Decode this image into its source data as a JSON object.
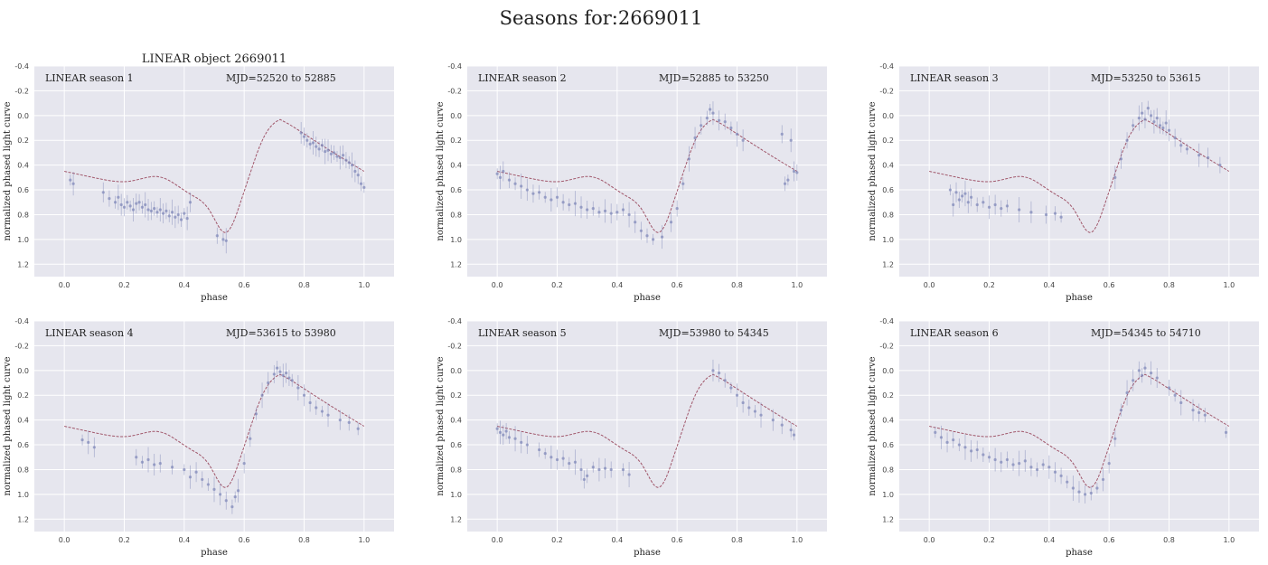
{
  "figure_title": "Seasons for:2669011",
  "chart_data": [
    {
      "type": "scatter",
      "title": "LINEAR object 2669011",
      "label_left": "LINEAR season 1",
      "label_right": "MJD=52520 to 52885",
      "xlabel": "phase",
      "ylabel": "normalized phased light curve",
      "xlim": [
        -0.1,
        1.1
      ],
      "ylim": [
        1.3,
        -0.4
      ],
      "xticks": [
        "0.0",
        "0.2",
        "0.4",
        "0.6",
        "0.8",
        "1.0"
      ],
      "yticks": [
        "-0.4",
        "-0.2",
        "0.0",
        "0.2",
        "0.4",
        "0.6",
        "0.8",
        "1.0",
        "1.2"
      ],
      "grid": true,
      "point_color": "#7d86b8",
      "curve_color": "#a0566a",
      "points": [
        [
          0.02,
          0.52
        ],
        [
          0.03,
          0.55
        ],
        [
          0.13,
          0.62
        ],
        [
          0.15,
          0.67
        ],
        [
          0.17,
          0.7
        ],
        [
          0.18,
          0.66
        ],
        [
          0.19,
          0.72
        ],
        [
          0.2,
          0.74
        ],
        [
          0.21,
          0.7
        ],
        [
          0.22,
          0.73
        ],
        [
          0.23,
          0.76
        ],
        [
          0.24,
          0.71
        ],
        [
          0.25,
          0.7
        ],
        [
          0.26,
          0.74
        ],
        [
          0.27,
          0.72
        ],
        [
          0.28,
          0.76
        ],
        [
          0.29,
          0.77
        ],
        [
          0.3,
          0.75
        ],
        [
          0.31,
          0.78
        ],
        [
          0.32,
          0.76
        ],
        [
          0.33,
          0.79
        ],
        [
          0.34,
          0.77
        ],
        [
          0.35,
          0.81
        ],
        [
          0.36,
          0.78
        ],
        [
          0.37,
          0.82
        ],
        [
          0.38,
          0.8
        ],
        [
          0.39,
          0.84
        ],
        [
          0.4,
          0.79
        ],
        [
          0.41,
          0.83
        ],
        [
          0.42,
          0.7
        ],
        [
          0.51,
          0.97
        ],
        [
          0.53,
          1.0
        ],
        [
          0.54,
          1.01
        ],
        [
          0.79,
          0.14
        ],
        [
          0.8,
          0.17
        ],
        [
          0.81,
          0.2
        ],
        [
          0.82,
          0.23
        ],
        [
          0.83,
          0.22
        ],
        [
          0.84,
          0.25
        ],
        [
          0.85,
          0.27
        ],
        [
          0.86,
          0.24
        ],
        [
          0.87,
          0.29
        ],
        [
          0.88,
          0.28
        ],
        [
          0.89,
          0.31
        ],
        [
          0.9,
          0.3
        ],
        [
          0.91,
          0.33
        ],
        [
          0.92,
          0.34
        ],
        [
          0.93,
          0.32
        ],
        [
          0.94,
          0.36
        ],
        [
          0.95,
          0.38
        ],
        [
          0.96,
          0.4
        ],
        [
          0.97,
          0.45
        ],
        [
          0.98,
          0.48
        ],
        [
          0.99,
          0.55
        ],
        [
          1.0,
          0.58
        ]
      ]
    },
    {
      "type": "scatter",
      "title": "",
      "label_left": "LINEAR season 2",
      "label_right": "MJD=52885 to 53250",
      "xlabel": "phase",
      "ylabel": "normalized phased light curve",
      "xlim": [
        -0.1,
        1.1
      ],
      "ylim": [
        1.3,
        -0.4
      ],
      "xticks": [
        "0.0",
        "0.2",
        "0.4",
        "0.6",
        "0.8",
        "1.0"
      ],
      "yticks": [
        "-0.4",
        "-0.2",
        "0.0",
        "0.2",
        "0.4",
        "0.6",
        "0.8",
        "1.0",
        "1.2"
      ],
      "grid": true,
      "point_color": "#7d86b8",
      "curve_color": "#a0566a",
      "points": [
        [
          0.0,
          0.47
        ],
        [
          0.01,
          0.5
        ],
        [
          0.02,
          0.45
        ],
        [
          0.04,
          0.52
        ],
        [
          0.06,
          0.55
        ],
        [
          0.08,
          0.57
        ],
        [
          0.1,
          0.6
        ],
        [
          0.12,
          0.63
        ],
        [
          0.14,
          0.62
        ],
        [
          0.16,
          0.66
        ],
        [
          0.18,
          0.68
        ],
        [
          0.2,
          0.66
        ],
        [
          0.22,
          0.7
        ],
        [
          0.24,
          0.72
        ],
        [
          0.26,
          0.71
        ],
        [
          0.28,
          0.74
        ],
        [
          0.3,
          0.76
        ],
        [
          0.32,
          0.75
        ],
        [
          0.34,
          0.78
        ],
        [
          0.36,
          0.77
        ],
        [
          0.38,
          0.79
        ],
        [
          0.4,
          0.78
        ],
        [
          0.42,
          0.76
        ],
        [
          0.44,
          0.8
        ],
        [
          0.46,
          0.86
        ],
        [
          0.48,
          0.93
        ],
        [
          0.5,
          0.97
        ],
        [
          0.52,
          1.0
        ],
        [
          0.55,
          0.98
        ],
        [
          0.58,
          0.86
        ],
        [
          0.6,
          0.75
        ],
        [
          0.62,
          0.55
        ],
        [
          0.64,
          0.35
        ],
        [
          0.66,
          0.18
        ],
        [
          0.68,
          0.08
        ],
        [
          0.7,
          0.02
        ],
        [
          0.71,
          -0.05
        ],
        [
          0.72,
          -0.02
        ],
        [
          0.74,
          0.04
        ],
        [
          0.76,
          0.05
        ],
        [
          0.78,
          0.1
        ],
        [
          0.8,
          0.15
        ],
        [
          0.82,
          0.2
        ],
        [
          0.95,
          0.15
        ],
        [
          0.96,
          0.55
        ],
        [
          0.97,
          0.52
        ],
        [
          0.98,
          0.2
        ],
        [
          0.99,
          0.45
        ],
        [
          1.0,
          0.46
        ]
      ]
    },
    {
      "type": "scatter",
      "title": "",
      "label_left": "LINEAR season 3",
      "label_right": "MJD=53250 to 53615",
      "xlabel": "phase",
      "ylabel": "normalized phased light curve",
      "xlim": [
        -0.1,
        1.1
      ],
      "ylim": [
        1.3,
        -0.4
      ],
      "xticks": [
        "0.0",
        "0.2",
        "0.4",
        "0.6",
        "0.8",
        "1.0"
      ],
      "yticks": [
        "-0.4",
        "-0.2",
        "0.0",
        "0.2",
        "0.4",
        "0.6",
        "0.8",
        "1.0",
        "1.2"
      ],
      "grid": true,
      "point_color": "#7d86b8",
      "curve_color": "#a0566a",
      "points": [
        [
          0.07,
          0.6
        ],
        [
          0.08,
          0.72
        ],
        [
          0.09,
          0.62
        ],
        [
          0.1,
          0.68
        ],
        [
          0.11,
          0.65
        ],
        [
          0.12,
          0.63
        ],
        [
          0.13,
          0.7
        ],
        [
          0.14,
          0.66
        ],
        [
          0.16,
          0.72
        ],
        [
          0.18,
          0.7
        ],
        [
          0.2,
          0.74
        ],
        [
          0.22,
          0.72
        ],
        [
          0.24,
          0.75
        ],
        [
          0.26,
          0.73
        ],
        [
          0.3,
          0.76
        ],
        [
          0.34,
          0.78
        ],
        [
          0.39,
          0.8
        ],
        [
          0.42,
          0.79
        ],
        [
          0.44,
          0.82
        ],
        [
          0.62,
          0.5
        ],
        [
          0.64,
          0.35
        ],
        [
          0.66,
          0.2
        ],
        [
          0.68,
          0.08
        ],
        [
          0.7,
          0.02
        ],
        [
          0.71,
          -0.02
        ],
        [
          0.72,
          0.03
        ],
        [
          0.73,
          -0.06
        ],
        [
          0.74,
          0.0
        ],
        [
          0.75,
          0.05
        ],
        [
          0.76,
          0.02
        ],
        [
          0.77,
          0.08
        ],
        [
          0.78,
          0.1
        ],
        [
          0.79,
          0.06
        ],
        [
          0.8,
          0.12
        ],
        [
          0.82,
          0.18
        ],
        [
          0.84,
          0.24
        ],
        [
          0.86,
          0.27
        ],
        [
          0.9,
          0.32
        ],
        [
          0.93,
          0.34
        ],
        [
          0.97,
          0.4
        ]
      ]
    },
    {
      "type": "scatter",
      "title": "",
      "label_left": "LINEAR season 4",
      "label_right": "MJD=53615 to 53980",
      "xlabel": "phase",
      "ylabel": "normalized phased light curve",
      "xlim": [
        -0.1,
        1.1
      ],
      "ylim": [
        1.3,
        -0.4
      ],
      "xticks": [
        "0.0",
        "0.2",
        "0.4",
        "0.6",
        "0.8",
        "1.0"
      ],
      "yticks": [
        "-0.4",
        "-0.2",
        "0.0",
        "0.2",
        "0.4",
        "0.6",
        "0.8",
        "1.0",
        "1.2"
      ],
      "grid": true,
      "point_color": "#7d86b8",
      "curve_color": "#a0566a",
      "points": [
        [
          0.06,
          0.56
        ],
        [
          0.08,
          0.58
        ],
        [
          0.1,
          0.62
        ],
        [
          0.24,
          0.7
        ],
        [
          0.26,
          0.74
        ],
        [
          0.28,
          0.72
        ],
        [
          0.3,
          0.76
        ],
        [
          0.32,
          0.75
        ],
        [
          0.36,
          0.78
        ],
        [
          0.4,
          0.8
        ],
        [
          0.42,
          0.86
        ],
        [
          0.44,
          0.82
        ],
        [
          0.46,
          0.88
        ],
        [
          0.48,
          0.92
        ],
        [
          0.5,
          0.96
        ],
        [
          0.52,
          1.0
        ],
        [
          0.54,
          1.05
        ],
        [
          0.56,
          1.1
        ],
        [
          0.57,
          1.02
        ],
        [
          0.58,
          0.97
        ],
        [
          0.6,
          0.75
        ],
        [
          0.62,
          0.55
        ],
        [
          0.64,
          0.35
        ],
        [
          0.66,
          0.2
        ],
        [
          0.68,
          0.1
        ],
        [
          0.7,
          0.03
        ],
        [
          0.71,
          -0.02
        ],
        [
          0.72,
          0.01
        ],
        [
          0.73,
          0.04
        ],
        [
          0.74,
          0.02
        ],
        [
          0.75,
          0.06
        ],
        [
          0.76,
          0.08
        ],
        [
          0.78,
          0.14
        ],
        [
          0.8,
          0.2
        ],
        [
          0.82,
          0.26
        ],
        [
          0.84,
          0.3
        ],
        [
          0.86,
          0.33
        ],
        [
          0.88,
          0.36
        ],
        [
          0.92,
          0.4
        ],
        [
          0.95,
          0.42
        ],
        [
          0.98,
          0.47
        ]
      ]
    },
    {
      "type": "scatter",
      "title": "",
      "label_left": "LINEAR season 5",
      "label_right": "MJD=53980 to 54345",
      "xlabel": "phase",
      "ylabel": "normalized phased light curve",
      "xlim": [
        -0.1,
        1.1
      ],
      "ylim": [
        1.3,
        -0.4
      ],
      "xticks": [
        "0.0",
        "0.2",
        "0.4",
        "0.6",
        "0.8",
        "1.0"
      ],
      "yticks": [
        "-0.4",
        "-0.2",
        "0.0",
        "0.2",
        "0.4",
        "0.6",
        "0.8",
        "1.0",
        "1.2"
      ],
      "grid": true,
      "point_color": "#7d86b8",
      "curve_color": "#a0566a",
      "points": [
        [
          0.0,
          0.47
        ],
        [
          0.01,
          0.5
        ],
        [
          0.02,
          0.52
        ],
        [
          0.03,
          0.49
        ],
        [
          0.04,
          0.54
        ],
        [
          0.06,
          0.55
        ],
        [
          0.08,
          0.58
        ],
        [
          0.1,
          0.6
        ],
        [
          0.14,
          0.64
        ],
        [
          0.16,
          0.67
        ],
        [
          0.18,
          0.7
        ],
        [
          0.2,
          0.72
        ],
        [
          0.22,
          0.71
        ],
        [
          0.24,
          0.75
        ],
        [
          0.26,
          0.74
        ],
        [
          0.28,
          0.8
        ],
        [
          0.29,
          0.88
        ],
        [
          0.3,
          0.85
        ],
        [
          0.32,
          0.78
        ],
        [
          0.34,
          0.8
        ],
        [
          0.36,
          0.79
        ],
        [
          0.38,
          0.8
        ],
        [
          0.42,
          0.8
        ],
        [
          0.44,
          0.84
        ],
        [
          0.72,
          0.0
        ],
        [
          0.74,
          0.02
        ],
        [
          0.76,
          0.08
        ],
        [
          0.78,
          0.14
        ],
        [
          0.8,
          0.2
        ],
        [
          0.82,
          0.26
        ],
        [
          0.84,
          0.3
        ],
        [
          0.86,
          0.33
        ],
        [
          0.88,
          0.36
        ],
        [
          0.92,
          0.4
        ],
        [
          0.95,
          0.44
        ],
        [
          0.98,
          0.48
        ],
        [
          0.99,
          0.52
        ]
      ]
    },
    {
      "type": "scatter",
      "title": "",
      "label_left": "LINEAR season 6",
      "label_right": "MJD=54345 to 54710",
      "xlabel": "phase",
      "ylabel": "normalized phased light curve",
      "xlim": [
        -0.1,
        1.1
      ],
      "ylim": [
        1.3,
        -0.4
      ],
      "xticks": [
        "0.0",
        "0.2",
        "0.4",
        "0.6",
        "0.8",
        "1.0"
      ],
      "yticks": [
        "-0.4",
        "-0.2",
        "0.0",
        "0.2",
        "0.4",
        "0.6",
        "0.8",
        "1.0",
        "1.2"
      ],
      "grid": true,
      "point_color": "#7d86b8",
      "curve_color": "#a0566a",
      "points": [
        [
          0.02,
          0.5
        ],
        [
          0.04,
          0.54
        ],
        [
          0.06,
          0.58
        ],
        [
          0.08,
          0.56
        ],
        [
          0.1,
          0.6
        ],
        [
          0.12,
          0.62
        ],
        [
          0.14,
          0.65
        ],
        [
          0.16,
          0.64
        ],
        [
          0.18,
          0.68
        ],
        [
          0.2,
          0.7
        ],
        [
          0.22,
          0.72
        ],
        [
          0.24,
          0.74
        ],
        [
          0.26,
          0.72
        ],
        [
          0.28,
          0.76
        ],
        [
          0.3,
          0.75
        ],
        [
          0.32,
          0.73
        ],
        [
          0.34,
          0.78
        ],
        [
          0.36,
          0.8
        ],
        [
          0.38,
          0.76
        ],
        [
          0.4,
          0.78
        ],
        [
          0.42,
          0.82
        ],
        [
          0.44,
          0.85
        ],
        [
          0.46,
          0.9
        ],
        [
          0.48,
          0.95
        ],
        [
          0.5,
          0.98
        ],
        [
          0.52,
          1.0
        ],
        [
          0.54,
          0.99
        ],
        [
          0.56,
          0.95
        ],
        [
          0.58,
          0.88
        ],
        [
          0.6,
          0.75
        ],
        [
          0.62,
          0.55
        ],
        [
          0.64,
          0.32
        ],
        [
          0.66,
          0.18
        ],
        [
          0.68,
          0.08
        ],
        [
          0.7,
          0.0
        ],
        [
          0.71,
          0.04
        ],
        [
          0.72,
          -0.02
        ],
        [
          0.74,
          0.02
        ],
        [
          0.76,
          0.06
        ],
        [
          0.8,
          0.14
        ],
        [
          0.82,
          0.2
        ],
        [
          0.84,
          0.26
        ],
        [
          0.88,
          0.32
        ],
        [
          0.9,
          0.34
        ],
        [
          0.92,
          0.36
        ],
        [
          0.99,
          0.5
        ]
      ]
    }
  ]
}
